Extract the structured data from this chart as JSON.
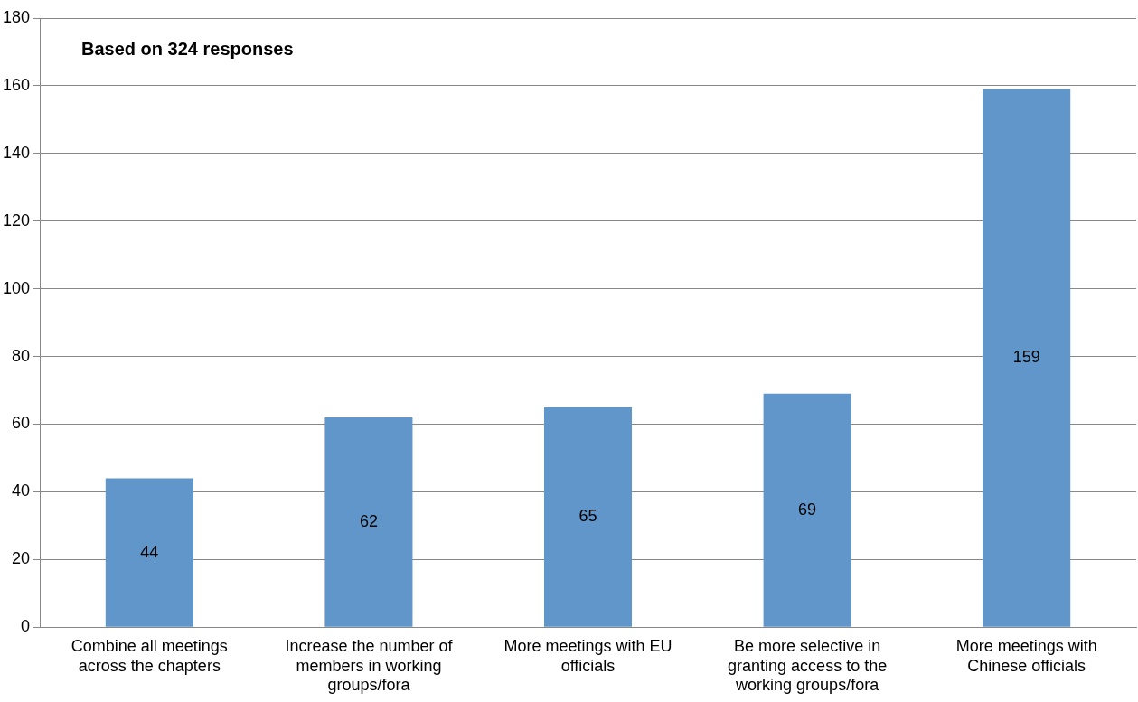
{
  "chart_data": {
    "type": "bar",
    "title": "Based on 324 responses",
    "categories": [
      "Combine all meetings across the chapters",
      "Increase the number of members in working groups/fora",
      "More meetings with EU officials",
      "Be more selective in granting access to the working groups/fora",
      "More meetings with Chinese officials"
    ],
    "values": [
      44,
      62,
      65,
      69,
      159
    ],
    "color": "#6096c9",
    "ylim": [
      0,
      180
    ],
    "yticks": [
      0,
      20,
      40,
      60,
      80,
      100,
      120,
      140,
      160,
      180
    ],
    "grid": "y",
    "legend": false,
    "data_labels": true
  }
}
